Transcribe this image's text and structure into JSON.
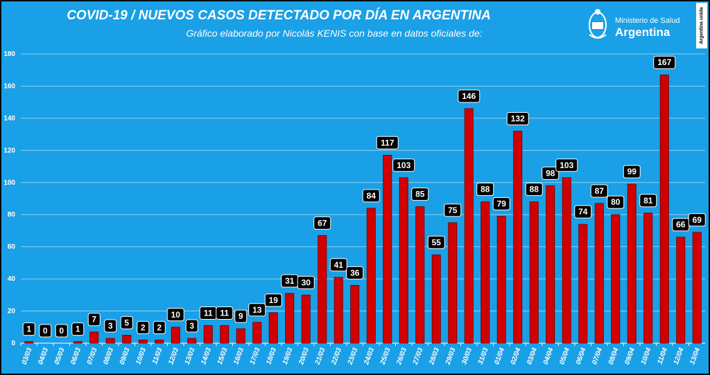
{
  "header": {
    "title": "COVID-19  /  NUEVOS CASOS DETECTADO POR DÍA EN ARGENTINA",
    "subtitle": "Gráfico elaborado por Nicolás KENIS con base en datos oficiales de:"
  },
  "ministry": {
    "line1": "Ministerio de Salud",
    "line2": "Argentina"
  },
  "badge": {
    "text": "Argentina unida"
  },
  "colors": {
    "background": "#1aa0e6",
    "bar": "#d10000",
    "label_bg": "#000000",
    "grid": "#8fd0f2"
  },
  "chart_data": {
    "type": "bar",
    "title": "COVID-19  /  NUEVOS CASOS DETECTADO POR DÍA EN ARGENTINA",
    "categories": [
      "03/03",
      "04/03",
      "05/03",
      "06/03",
      "07/03",
      "08/03",
      "09/03",
      "10/03",
      "11/03",
      "12/03",
      "13/03",
      "14/03",
      "15/03",
      "16/03",
      "17/03",
      "18/03",
      "19/03",
      "20/03",
      "21/03",
      "22/03",
      "23/03",
      "24/03",
      "25/03",
      "26/03",
      "27/03",
      "28/03",
      "29/03",
      "30/03",
      "31/03",
      "01/04",
      "02/04",
      "03/04",
      "04/04",
      "05/04",
      "06/04",
      "07/04",
      "08/04",
      "09/04",
      "10/04",
      "11/04",
      "12/04",
      "13/04"
    ],
    "values": [
      1,
      0,
      0,
      1,
      7,
      3,
      5,
      2,
      2,
      10,
      3,
      11,
      11,
      9,
      13,
      19,
      31,
      30,
      67,
      41,
      36,
      84,
      117,
      103,
      85,
      55,
      75,
      146,
      88,
      79,
      132,
      88,
      98,
      103,
      74,
      87,
      80,
      99,
      81,
      167,
      66,
      69
    ],
    "yticks": [
      0,
      20,
      40,
      60,
      80,
      100,
      120,
      140,
      160,
      180
    ],
    "ylim": [
      0,
      180
    ],
    "grid": true,
    "data_labels": true
  }
}
